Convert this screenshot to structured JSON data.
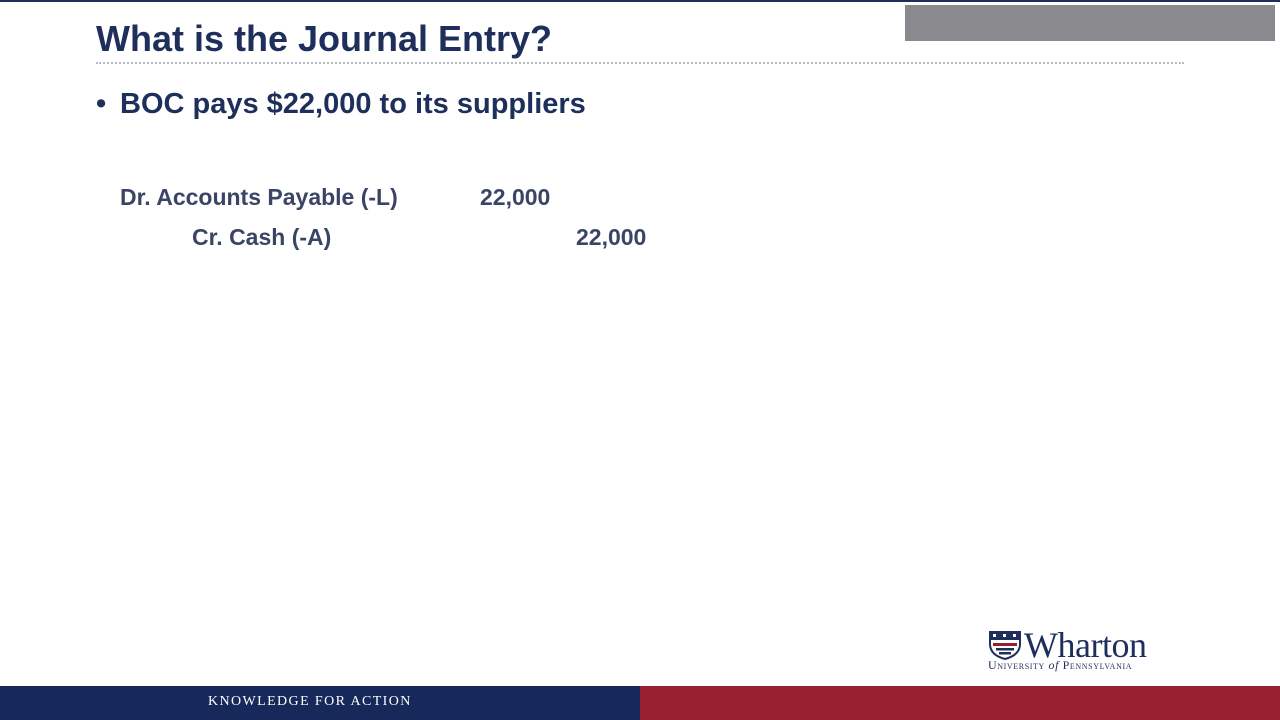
{
  "slide": {
    "title": "What is the Journal Entry?",
    "bullet_symbol": "•",
    "bullet": "BOC pays $22,000 to its suppliers",
    "journal_entry": {
      "debit": {
        "account": "Dr. Accounts Payable (-L)",
        "amount": "22,000"
      },
      "credit": {
        "account": "Cr. Cash (-A)",
        "amount": "22,000"
      }
    }
  },
  "logo": {
    "name": "Wharton",
    "subtitle_part1": "University ",
    "subtitle_of": "of",
    "subtitle_part2": " Pennsylvania"
  },
  "footer": {
    "tagline": "KNOWLEDGE FOR ACTION"
  },
  "colors": {
    "navy": "#1f2f5c",
    "footer_blue": "#17285a",
    "footer_red": "#96202f",
    "gray_bar": "#8a8a8e"
  }
}
